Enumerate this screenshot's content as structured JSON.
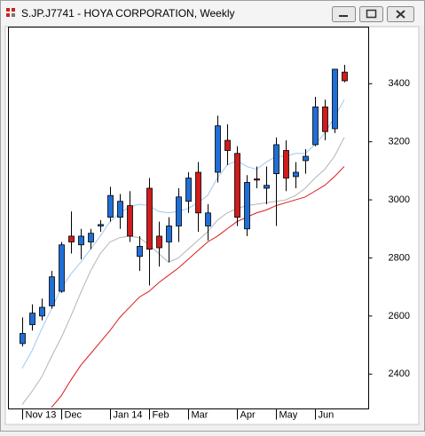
{
  "chart_data": {
    "type": "candlestick",
    "title": "S.JP.J7741 - HOYA CORPORATION, Weekly",
    "categories": [
      "Nov 13",
      null,
      null,
      null,
      "Dec",
      null,
      null,
      null,
      null,
      "Jan 14",
      null,
      null,
      null,
      "Feb",
      null,
      null,
      null,
      "Mar",
      null,
      null,
      null,
      null,
      "Apr",
      null,
      null,
      null,
      "May",
      null,
      null,
      null,
      "Jun",
      null,
      null,
      null
    ],
    "open": [
      2505,
      2570,
      2600,
      2635,
      2685,
      2875,
      2845,
      2855,
      2910,
      2940,
      2940,
      2980,
      2805,
      3040,
      2875,
      2855,
      2910,
      2995,
      3095,
      2910,
      3095,
      3205,
      3160,
      2900,
      3072,
      3040,
      3090,
      3170,
      3080,
      3135,
      3190,
      3320,
      3245,
      3440
    ],
    "high": [
      2595,
      2640,
      2660,
      2755,
      2855,
      2960,
      2900,
      2900,
      2930,
      3045,
      3020,
      3030,
      2875,
      3075,
      2925,
      2940,
      3040,
      3095,
      3130,
      2985,
      3290,
      3260,
      3185,
      3085,
      3115,
      3115,
      3215,
      3205,
      3130,
      3175,
      3355,
      3345,
      3450,
      3465
    ],
    "low": [
      2495,
      2550,
      2585,
      2625,
      2680,
      2815,
      2795,
      2830,
      2890,
      2925,
      2900,
      2855,
      2755,
      2705,
      2770,
      2785,
      2855,
      2955,
      2890,
      2860,
      3060,
      3120,
      2910,
      2875,
      3040,
      2985,
      2910,
      3030,
      3040,
      3090,
      3185,
      3205,
      3230,
      3405
    ],
    "close": [
      2540,
      2610,
      2630,
      2735,
      2845,
      2855,
      2875,
      2885,
      2915,
      3015,
      2995,
      2875,
      2840,
      2830,
      2835,
      2910,
      3010,
      3075,
      2955,
      2955,
      3255,
      3170,
      2940,
      3060,
      3068,
      3050,
      3190,
      3075,
      3095,
      3150,
      3320,
      3235,
      3450,
      3410
    ],
    "up_color": "#1f6fd6",
    "down_color": "#d01c1c",
    "overlays": [
      {
        "color": "#9ec8f0",
        "values": [
          2420,
          2480,
          2555,
          2625,
          2695,
          2745,
          2785,
          2830,
          2875,
          2925,
          2955,
          2975,
          2985,
          2980,
          2960,
          2955,
          2960,
          2970,
          2990,
          3015,
          3075,
          3120,
          3135,
          3115,
          3105,
          3130,
          3150,
          3150,
          3160,
          3160,
          3190,
          3230,
          3285,
          3345
        ]
      },
      {
        "color": "#b4b4b4",
        "values": [
          2295,
          2340,
          2390,
          2460,
          2525,
          2600,
          2680,
          2755,
          2815,
          2855,
          2870,
          2875,
          2870,
          2845,
          2815,
          2785,
          2800,
          2830,
          2860,
          2890,
          2930,
          2955,
          2970,
          2980,
          2985,
          2990,
          2995,
          3000,
          3015,
          3040,
          3075,
          3105,
          3150,
          3215
        ]
      },
      {
        "color": "#dd1a1a",
        "values": [
          null,
          null,
          null,
          2285,
          2325,
          2380,
          2430,
          2470,
          2510,
          2550,
          2595,
          2630,
          2665,
          2685,
          2715,
          2740,
          2765,
          2795,
          2825,
          2855,
          2875,
          2900,
          2925,
          2940,
          2955,
          2965,
          2980,
          2990,
          3000,
          3010,
          3030,
          3050,
          3080,
          3115
        ]
      }
    ],
    "ylim": [
      2280,
      3595
    ],
    "yticks": [
      2400,
      2600,
      2800,
      3000,
      3200,
      3400
    ]
  }
}
